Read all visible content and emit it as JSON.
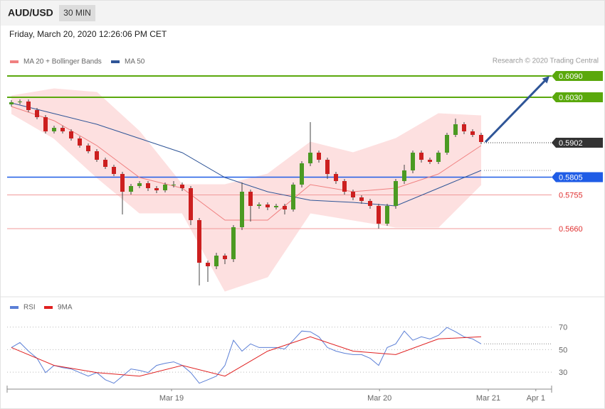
{
  "header": {
    "symbol": "AUD/USD",
    "timeframe": "30 MIN",
    "date": "Friday, March 20, 2020 12:26:06 PM CET"
  },
  "chart_data": [
    {
      "type": "candlestick",
      "credit": "Research © 2020 Trading Central",
      "up_color": "#4b9a22",
      "down_color": "#cc1f1f",
      "xlim": [
        -0.5,
        63.25
      ],
      "ylim": [
        0.5474,
        0.6184
      ],
      "x": [
        0,
        1,
        2,
        3,
        4,
        5,
        6,
        7,
        8,
        9,
        10,
        11,
        12,
        13,
        14,
        15,
        16,
        17,
        18,
        19,
        20,
        21,
        22,
        23,
        24,
        25,
        26,
        27,
        28,
        29,
        30,
        31,
        32,
        33,
        34,
        35,
        36,
        37,
        38,
        39,
        40,
        41,
        42,
        43,
        44,
        45,
        46,
        47,
        48,
        49,
        50,
        51,
        52,
        53,
        54,
        55
      ],
      "open": [
        0.601,
        0.6016,
        0.6018,
        0.5994,
        0.5974,
        0.5934,
        0.5944,
        0.5934,
        0.5914,
        0.5894,
        0.5878,
        0.5854,
        0.5834,
        0.5814,
        0.5764,
        0.578,
        0.5788,
        0.5774,
        0.5768,
        0.5784,
        0.5784,
        0.5774,
        0.5684,
        0.5564,
        0.5554,
        0.5584,
        0.5574,
        0.5664,
        0.5764,
        0.5724,
        0.5728,
        0.572,
        0.5724,
        0.5714,
        0.5784,
        0.5844,
        0.5874,
        0.5854,
        0.5814,
        0.5794,
        0.5764,
        0.5748,
        0.5738,
        0.5724,
        0.5674,
        0.5724,
        0.5794,
        0.5824,
        0.5874,
        0.5854,
        0.5848,
        0.5874,
        0.5924,
        0.5954,
        0.5934,
        0.5924
      ],
      "high": [
        0.6022,
        0.6024,
        0.6024,
        0.6,
        0.598,
        0.595,
        0.595,
        0.594,
        0.592,
        0.59,
        0.5884,
        0.586,
        0.584,
        0.582,
        0.5786,
        0.5794,
        0.5794,
        0.578,
        0.579,
        0.5794,
        0.579,
        0.578,
        0.569,
        0.557,
        0.5592,
        0.559,
        0.567,
        0.579,
        0.577,
        0.5734,
        0.5734,
        0.573,
        0.573,
        0.579,
        0.585,
        0.596,
        0.588,
        0.586,
        0.582,
        0.58,
        0.577,
        0.5754,
        0.5744,
        0.573,
        0.573,
        0.58,
        0.584,
        0.588,
        0.588,
        0.586,
        0.588,
        0.593,
        0.597,
        0.596,
        0.594,
        0.593
      ],
      "low": [
        0.6004,
        0.601,
        0.5988,
        0.5968,
        0.5928,
        0.5928,
        0.5928,
        0.5908,
        0.5888,
        0.5872,
        0.5848,
        0.5828,
        0.5808,
        0.57,
        0.5756,
        0.5774,
        0.5766,
        0.576,
        0.5762,
        0.5776,
        0.5766,
        0.567,
        0.55,
        0.551,
        0.5546,
        0.556,
        0.5566,
        0.5656,
        0.568,
        0.5716,
        0.5712,
        0.5714,
        0.57,
        0.5708,
        0.5776,
        0.5836,
        0.5846,
        0.58,
        0.5786,
        0.5756,
        0.574,
        0.573,
        0.5716,
        0.566,
        0.5668,
        0.5716,
        0.5786,
        0.5816,
        0.5846,
        0.5842,
        0.5842,
        0.5868,
        0.5918,
        0.5926,
        0.5918,
        0.5898
      ],
      "close": [
        0.6016,
        0.6018,
        0.5994,
        0.5974,
        0.5934,
        0.5944,
        0.5934,
        0.5914,
        0.5894,
        0.5878,
        0.5854,
        0.5834,
        0.5814,
        0.5764,
        0.578,
        0.5788,
        0.5774,
        0.5768,
        0.5784,
        0.5784,
        0.5774,
        0.5684,
        0.5564,
        0.5554,
        0.5584,
        0.5574,
        0.5664,
        0.5764,
        0.5724,
        0.5728,
        0.572,
        0.5724,
        0.5714,
        0.5784,
        0.5844,
        0.5874,
        0.5854,
        0.5814,
        0.5794,
        0.5764,
        0.5748,
        0.5738,
        0.5724,
        0.5674,
        0.5724,
        0.5794,
        0.5824,
        0.5874,
        0.5854,
        0.5848,
        0.5874,
        0.5924,
        0.5954,
        0.5934,
        0.5924,
        0.5904
      ],
      "series": [
        {
          "name": "MA 20 + Bollinger Bands",
          "color": "#f08080",
          "band_color": "#fde0e0",
          "x": [
            0,
            5,
            10,
            15,
            20,
            25,
            30,
            35,
            40,
            45,
            50,
            55
          ],
          "values": [
            0.6004,
            0.5964,
            0.5894,
            0.5804,
            0.5774,
            0.5684,
            0.5684,
            0.5784,
            0.5764,
            0.5774,
            0.5814,
            0.5894
          ],
          "upper": [
            0.6034,
            0.6054,
            0.6044,
            0.5934,
            0.5784,
            0.5784,
            0.5814,
            0.5904,
            0.5874,
            0.5914,
            0.5984,
            0.5978
          ],
          "lower": [
            0.5984,
            0.5914,
            0.5804,
            0.5704,
            0.5704,
            0.5484,
            0.5524,
            0.5704,
            0.5684,
            0.5664,
            0.5664,
            0.5784
          ]
        },
        {
          "name": "MA 50",
          "color": "#2f5597",
          "x": [
            0,
            5,
            10,
            15,
            20,
            25,
            30,
            35,
            40,
            45,
            50,
            55
          ],
          "values": [
            0.6014,
            0.5984,
            0.5954,
            0.5914,
            0.5874,
            0.5804,
            0.5764,
            0.574,
            0.5734,
            0.5724,
            0.5774,
            0.5824
          ]
        }
      ],
      "levels": [
        {
          "value": 0.609,
          "label": "0.6090",
          "color": "#5aa80c",
          "line": "solid",
          "label_box": true
        },
        {
          "value": 0.603,
          "label": "0.6030",
          "color": "#5aa80c",
          "line": "solid",
          "label_box": true
        },
        {
          "value": 0.5902,
          "label": "0.5902",
          "color": "#333333",
          "line": "dotted",
          "label_box": true
        },
        {
          "value": 0.5805,
          "label": "0.5805",
          "color": "#1f5ce6",
          "line": "solid",
          "label_box": true
        },
        {
          "value": 0.5755,
          "label": "0.5755",
          "color": "#e03030",
          "line": "solid",
          "label_box": false
        },
        {
          "value": 0.566,
          "label": "0.5660",
          "color": "#e03030",
          "line": "solid",
          "label_box": false
        }
      ],
      "arrow_color": "#2f5597"
    },
    {
      "type": "line",
      "xlim": [
        -0.5,
        63.25
      ],
      "ylim": [
        15,
        83
      ],
      "yticks": [
        30,
        50,
        70
      ],
      "grid": true,
      "xticks": [
        {
          "value": 18.75,
          "label": "Mar 19"
        },
        {
          "value": 43.1,
          "label": "Mar 20"
        },
        {
          "value": 55.83,
          "label": "Mar 21"
        },
        {
          "value": 61.4,
          "label": "Apr 1"
        }
      ],
      "series": [
        {
          "name": "RSI",
          "color": "#5b7fd6",
          "x": [
            0,
            1,
            2,
            3,
            4,
            5,
            6,
            7,
            8,
            9,
            10,
            11,
            12,
            13,
            14,
            15,
            16,
            17,
            18,
            19,
            20,
            21,
            22,
            23,
            24,
            25,
            26,
            27,
            28,
            29,
            30,
            31,
            32,
            33,
            34,
            35,
            36,
            37,
            38,
            39,
            40,
            41,
            42,
            43,
            44,
            45,
            46,
            47,
            48,
            49,
            50,
            51,
            52,
            53,
            54,
            55
          ],
          "values": [
            51.9,
            56.3,
            48.7,
            42.4,
            29.7,
            36.0,
            34.1,
            32.9,
            29.7,
            26.5,
            29.7,
            23.3,
            20.2,
            26.5,
            32.9,
            31.6,
            29.7,
            36.0,
            37.9,
            39.2,
            36.0,
            29.7,
            20.2,
            23.3,
            26.5,
            36.0,
            58.3,
            48.7,
            55.1,
            51.9,
            51.9,
            51.9,
            50.6,
            58.3,
            66.5,
            65.9,
            61.4,
            51.9,
            48.7,
            46.8,
            45.6,
            45.6,
            42.4,
            36.0,
            51.9,
            55.1,
            66.5,
            58.3,
            61.4,
            59.5,
            62.7,
            69.7,
            65.9,
            61.4,
            59.5,
            55.1
          ]
        },
        {
          "name": "9MA",
          "color": "#e02020",
          "x": [
            0,
            5,
            10,
            15,
            20,
            25,
            30,
            35,
            40,
            45,
            50,
            55
          ],
          "values": [
            51.9,
            36.0,
            29.7,
            26.5,
            36.0,
            26.5,
            48.7,
            61.4,
            48.7,
            45.6,
            59.5,
            61.4
          ]
        }
      ]
    }
  ]
}
